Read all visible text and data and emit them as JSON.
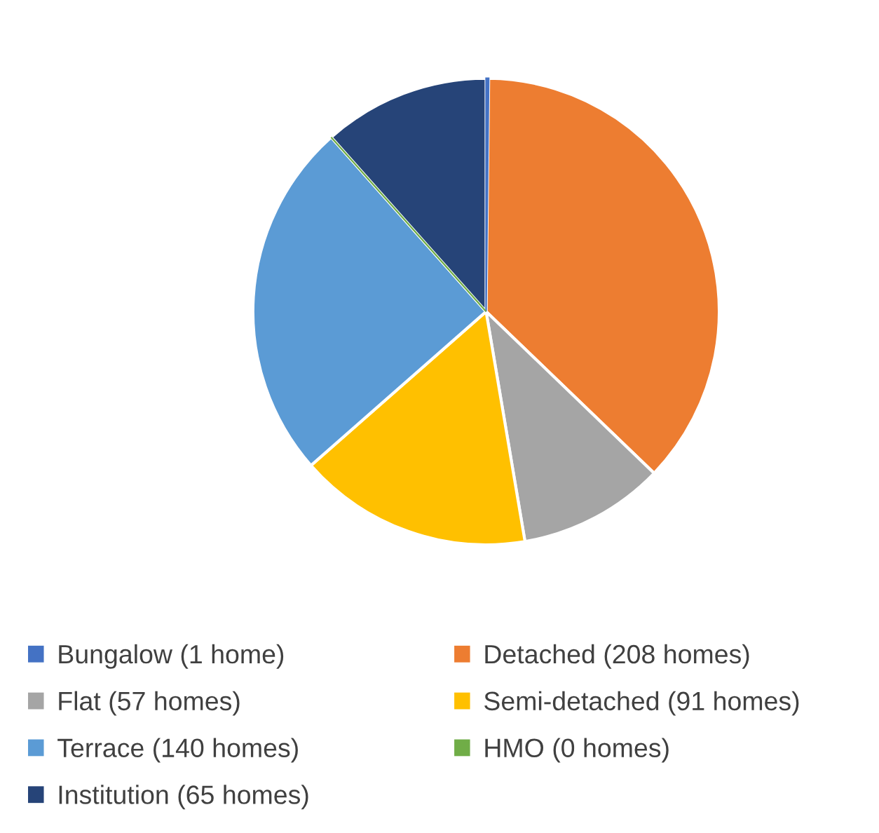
{
  "chart_data": {
    "type": "pie",
    "categories": [
      "Bungalow (1 home)",
      "Detached (208 homes)",
      "Flat (57 homes)",
      "Semi-detached (91 homes)",
      "Terrace (140 homes)",
      "HMO (0 homes)",
      "Institution (65 homes)"
    ],
    "values": [
      1,
      208,
      57,
      91,
      140,
      0,
      65
    ],
    "colors": [
      "#4472c4",
      "#ed7d31",
      "#a5a5a5",
      "#ffc000",
      "#5b9bd5",
      "#70ad47",
      "#264478"
    ],
    "legend": "bottom"
  }
}
